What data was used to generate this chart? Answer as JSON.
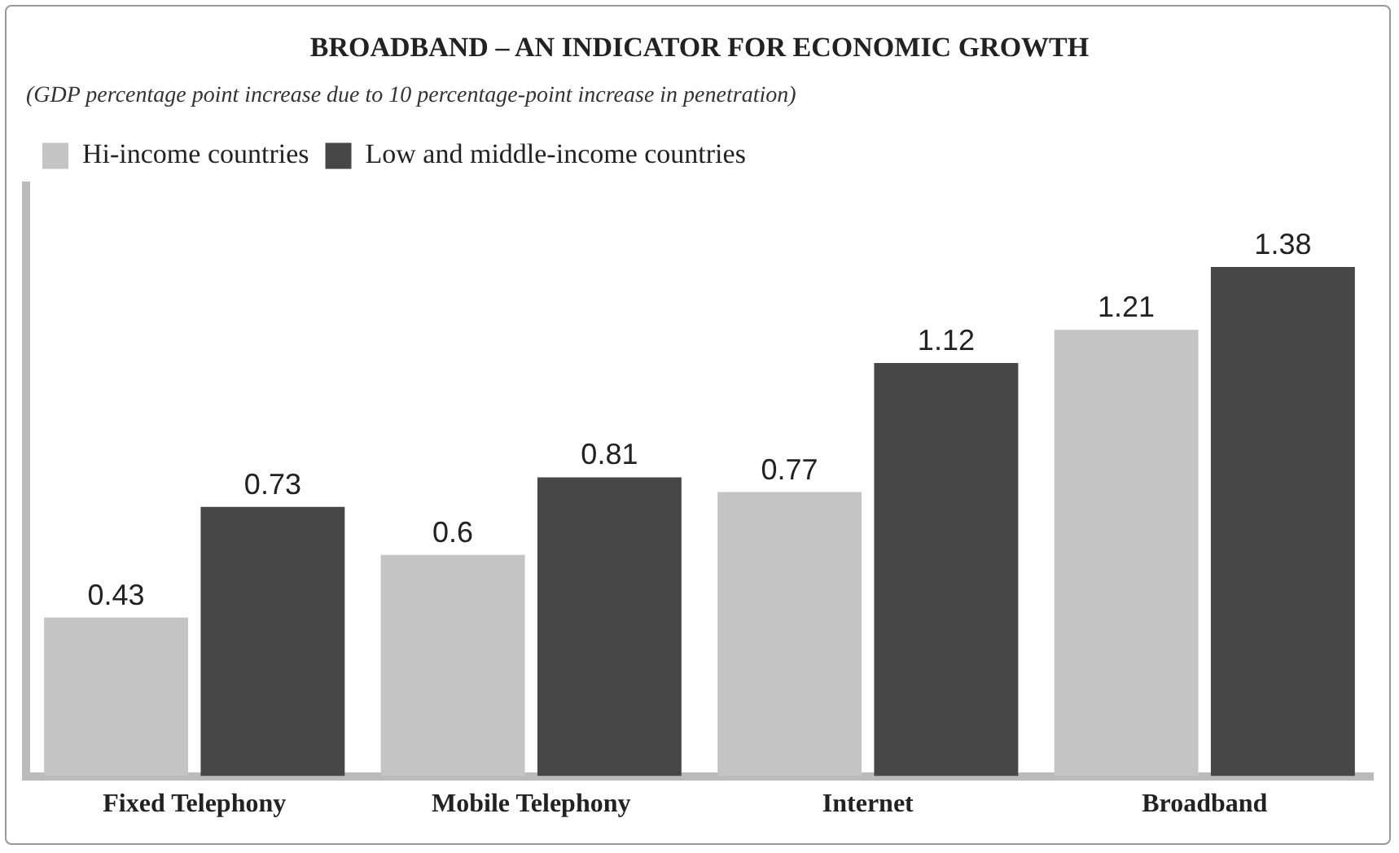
{
  "chart_data": {
    "type": "bar",
    "title": "BROADBAND – AN INDICATOR FOR ECONOMIC GROWTH",
    "subtitle": "(GDP percentage point increase due to 10 percentage-point increase in penetration)",
    "categories": [
      "Fixed Telephony",
      "Mobile Telephony",
      "Internet",
      "Broadband"
    ],
    "series": [
      {
        "name": "Hi-income countries",
        "color": "#c4c4c4",
        "values": [
          0.43,
          0.6,
          0.77,
          1.21
        ]
      },
      {
        "name": "Low and middle-income countries",
        "color": "#474747",
        "values": [
          0.73,
          0.81,
          1.12,
          1.38
        ]
      }
    ],
    "data_labels": true,
    "legend": "top left",
    "grid": false
  }
}
